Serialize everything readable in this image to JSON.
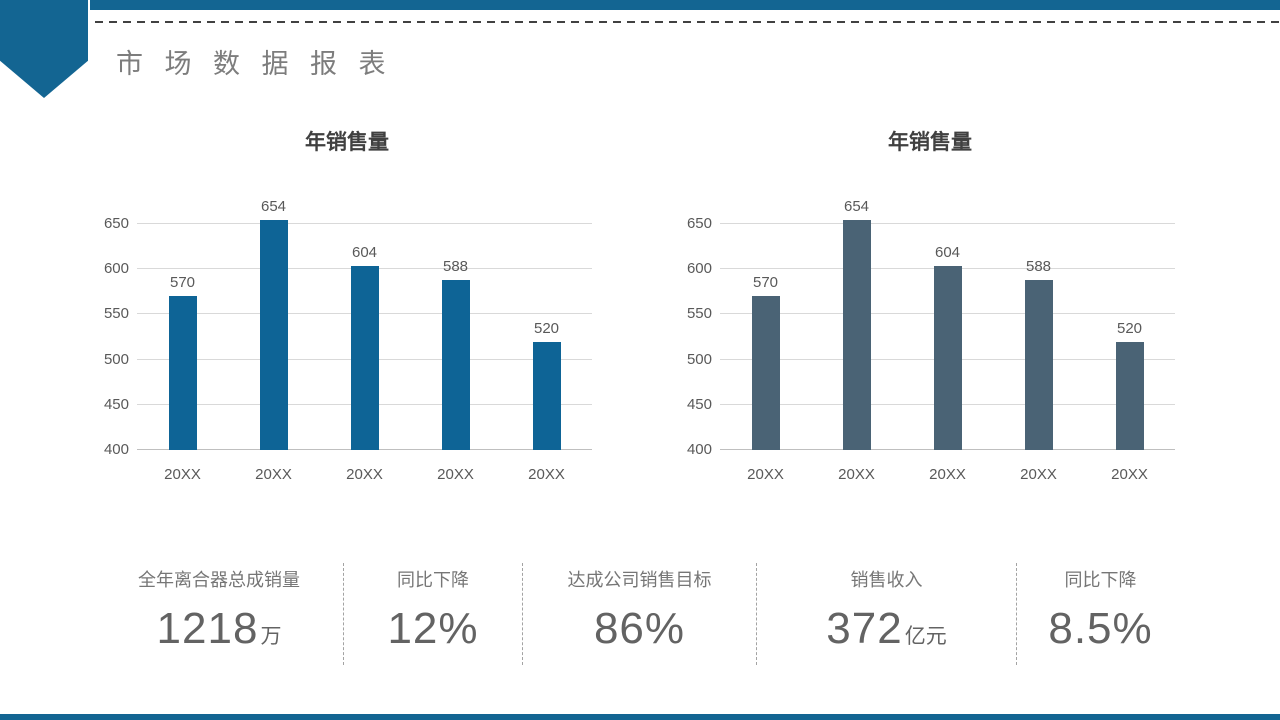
{
  "slide": {
    "title": "市 场 数 据 报 表",
    "accent_color": "#136592"
  },
  "chart_data": [
    {
      "type": "bar",
      "title": "年销售量",
      "categories": [
        "20XX",
        "20XX",
        "20XX",
        "20XX",
        "20XX"
      ],
      "values": [
        570,
        654,
        604,
        588,
        520
      ],
      "bar_color": "#0E6496",
      "xlabel": "",
      "ylabel": "",
      "ylim": [
        400,
        650
      ],
      "yticks": [
        400,
        450,
        500,
        550,
        600,
        650
      ],
      "grid": true,
      "data_labels": true,
      "legend": false
    },
    {
      "type": "bar",
      "title": "年销售量",
      "categories": [
        "20XX",
        "20XX",
        "20XX",
        "20XX",
        "20XX"
      ],
      "values": [
        570,
        654,
        604,
        588,
        520
      ],
      "bar_color": "#4A6375",
      "xlabel": "",
      "ylabel": "",
      "ylim": [
        400,
        650
      ],
      "yticks": [
        400,
        450,
        500,
        550,
        600,
        650
      ],
      "grid": true,
      "data_labels": true,
      "legend": false
    }
  ],
  "stats": [
    {
      "label": "全年离合器总成销量",
      "value": "1218",
      "unit": "万"
    },
    {
      "label": "同比下降",
      "value": "12%",
      "unit": ""
    },
    {
      "label": "达成公司销售目标",
      "value": "86%",
      "unit": ""
    },
    {
      "label": "销售收入",
      "value": "372",
      "unit": "亿元"
    },
    {
      "label": "同比下降",
      "value": "8.5%",
      "unit": ""
    }
  ]
}
